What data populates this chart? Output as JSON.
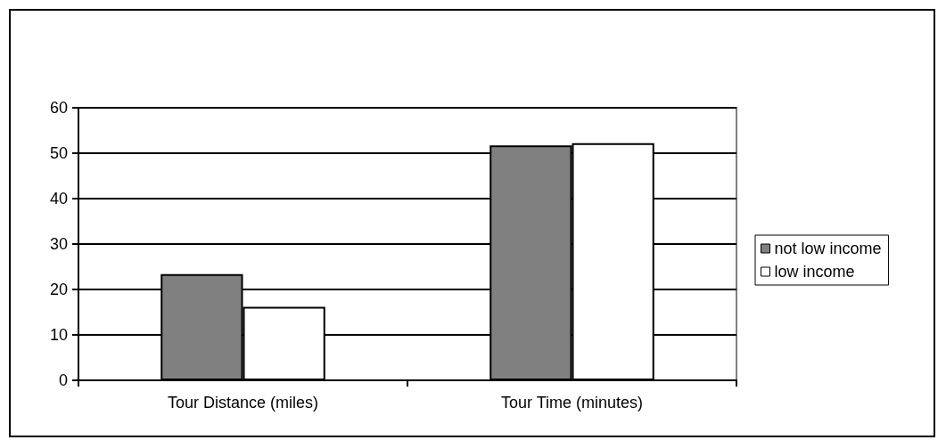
{
  "chart_data": {
    "type": "bar",
    "categories": [
      "Tour Distance (miles)",
      "Tour Time (minutes)"
    ],
    "series": [
      {
        "name": "not low income",
        "color": "#808080",
        "values": [
          23.4,
          51.7
        ]
      },
      {
        "name": "low income",
        "color": "#ffffff",
        "values": [
          16.2,
          52.2
        ]
      }
    ],
    "ylim": [
      0,
      60
    ],
    "yticks": [
      0,
      10,
      20,
      30,
      40,
      50,
      60
    ],
    "grid": "y",
    "legend": "right"
  }
}
